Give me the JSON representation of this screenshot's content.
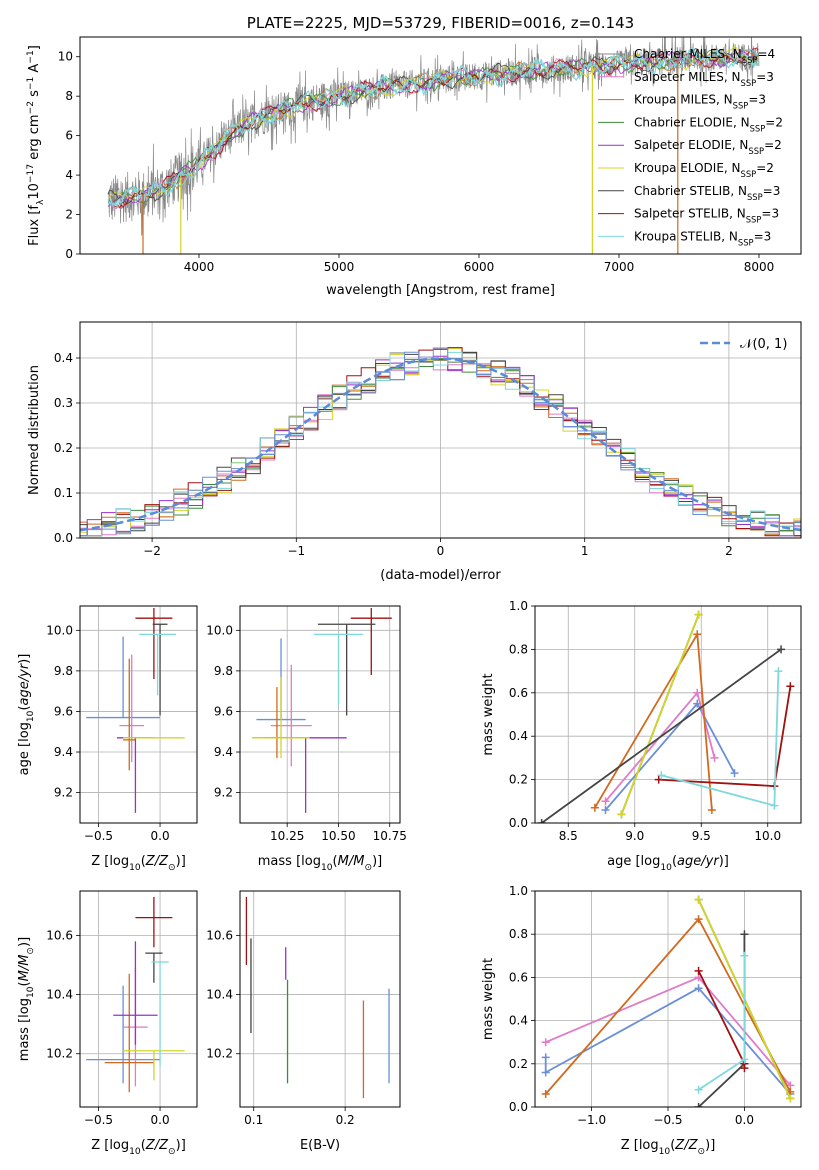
{
  "figure": {
    "title": "PLATE=2225, MJD=53729, FIBERID=0016, z=0.143"
  },
  "colors": {
    "Chabrier MILES": "#e17ac8",
    "Salpeter MILES": "#e17ac8",
    "Kroupa MILES": "#d2691e",
    "Chabrier ELODIE": "#3c8c3c",
    "Salpeter ELODIE": "#9932cc",
    "Kroupa ELODIE": "#d4d42a",
    "Chabrier STELIB": "#444444",
    "Salpeter STELIB": "#a01010",
    "Kroupa STELIB": "#7fd8dc",
    "blue": "#6a8fd8",
    "orange": "#e07b20",
    "gauss": "#5a8ad8",
    "data_grey": "#888888"
  },
  "chart_data": [
    {
      "id": "spectrum",
      "type": "line",
      "title": "PLATE=2225, MJD=53729, FIBERID=0016, z=0.143",
      "xlabel": "wavelength [Angstrom, rest frame]",
      "ylabel": "Flux [f_λ 10^-17 erg cm^-2 s^-1 A^-1]",
      "xlim": [
        3150,
        8300
      ],
      "ylim": [
        0,
        11
      ],
      "xticks": [
        4000,
        5000,
        6000,
        7000,
        8000
      ],
      "yticks": [
        0,
        2,
        4,
        6,
        8,
        10
      ],
      "grid": false,
      "legend_position": "top-right",
      "legend": [
        {
          "label": "Chabrier MILES, N",
          "sub": "SSP",
          "tail": "=4",
          "color": "#888888"
        },
        {
          "label": "Salpeter MILES, N",
          "sub": "SSP",
          "tail": "=3",
          "color": "#e17ac8"
        },
        {
          "label": "Kroupa MILES, N",
          "sub": "SSP",
          "tail": "=3",
          "color": "#d2691e"
        },
        {
          "label": "Chabrier ELODIE, N",
          "sub": "SSP",
          "tail": "=2",
          "color": "#3c8c3c"
        },
        {
          "label": "Salpeter ELODIE, N",
          "sub": "SSP",
          "tail": "=2",
          "color": "#9932cc"
        },
        {
          "label": "Kroupa ELODIE, N",
          "sub": "SSP",
          "tail": "=2",
          "color": "#d4d42a"
        },
        {
          "label": "Chabrier STELIB, N",
          "sub": "SSP",
          "tail": "=3",
          "color": "#444444"
        },
        {
          "label": "Salpeter STELIB, N",
          "sub": "SSP",
          "tail": "=3",
          "color": "#a01010"
        },
        {
          "label": "Kroupa STELIB, N",
          "sub": "SSP",
          "tail": "=3",
          "color": "#7fd8dc"
        }
      ],
      "continuum": {
        "x": [
          3350,
          3500,
          3600,
          3700,
          3800,
          3900,
          4000,
          4100,
          4200,
          4300,
          4400,
          4500,
          4600,
          4800,
          5000,
          5200,
          5400,
          5600,
          5800,
          6000,
          6200,
          6400,
          6600,
          6800,
          7000,
          7200,
          7400,
          7600,
          7800,
          8000
        ],
        "y": [
          2.7,
          2.9,
          3.0,
          3.2,
          3.6,
          4.1,
          4.6,
          5.2,
          5.9,
          6.4,
          6.8,
          7.1,
          7.3,
          7.7,
          8.0,
          8.3,
          8.5,
          8.7,
          8.9,
          9.0,
          9.2,
          9.3,
          9.4,
          9.5,
          9.6,
          9.7,
          9.8,
          9.9,
          10.0,
          10.0
        ]
      },
      "model_drops": [
        {
          "x": 3600,
          "color": "#d2691e"
        },
        {
          "x": 3870,
          "color": "#d4d42a"
        },
        {
          "x": 6810,
          "color": "#d4d42a"
        },
        {
          "x": 7420,
          "color": "#d2691e"
        }
      ]
    },
    {
      "id": "residuals",
      "type": "area",
      "xlabel": "(data-model)/error",
      "ylabel": "Normed distribution",
      "xlim": [
        -2.5,
        2.5
      ],
      "ylim": [
        0,
        0.48
      ],
      "xticks": [
        -2,
        -1,
        0,
        1,
        2
      ],
      "yticks": [
        0.0,
        0.1,
        0.2,
        0.3,
        0.4
      ],
      "grid": true,
      "legend_position": "top-right",
      "legend": [
        {
          "label": "𝒩(0, 1)",
          "color": "#5a8ad8",
          "style": "dashed"
        }
      ],
      "bin_width": 0.1
    },
    {
      "id": "age-vs-Z",
      "type": "scatter",
      "xlabel": "Z [log10(Z/Z⊙)]",
      "ylabel": "age  [log10(age/yr)]",
      "xlim": [
        -0.65,
        0.3
      ],
      "ylim": [
        9.05,
        10.12
      ],
      "xticks": [
        -0.5,
        0.0
      ],
      "yticks": [
        9.2,
        9.4,
        9.6,
        9.8,
        10.0
      ],
      "grid": true,
      "points": [
        {
          "x": -0.3,
          "y": 9.57,
          "xerr": 0.3,
          "yerr_lo": 0.0,
          "yerr_hi": 0.4,
          "color": "#6a8fd8"
        },
        {
          "x": -0.23,
          "y": 9.53,
          "xerr": 0.1,
          "yerr_lo": 0.18,
          "yerr_hi": 0.35,
          "color": "#e17ac8"
        },
        {
          "x": -0.25,
          "y": 9.46,
          "xerr": 0.05,
          "yerr_lo": 0.15,
          "yerr_hi": 0.4,
          "color": "#d2691e"
        },
        {
          "x": -0.2,
          "y": 9.47,
          "xerr": 0.15,
          "yerr_lo": 0.37,
          "yerr_hi": 0.0,
          "color": "#9932cc"
        },
        {
          "x": -0.05,
          "y": 9.47,
          "xerr": 0.25,
          "yerr_lo": 0.0,
          "yerr_hi": 0.0,
          "color": "#d4d42a"
        },
        {
          "x": -0.05,
          "y": 10.06,
          "xerr": 0.15,
          "yerr_lo": 0.3,
          "yerr_hi": 0.05,
          "color": "#a01010"
        },
        {
          "x": 0.0,
          "y": 10.03,
          "xerr": 0.06,
          "yerr_lo": 0.45,
          "yerr_hi": 0.0,
          "color": "#444444"
        },
        {
          "x": -0.02,
          "y": 9.98,
          "xerr": 0.15,
          "yerr_lo": 0.3,
          "yerr_hi": 0.0,
          "color": "#7fd8dc"
        }
      ]
    },
    {
      "id": "age-vs-mass",
      "type": "scatter",
      "xlabel": "mass [log10(M/M⊙)]",
      "ylabel": "",
      "xlim": [
        10.02,
        10.8
      ],
      "ylim": [
        9.05,
        10.12
      ],
      "xticks": [
        10.25,
        10.5,
        10.75
      ],
      "yticks": [
        9.2,
        9.4,
        9.6,
        9.8,
        10.0
      ],
      "grid": true,
      "points": [
        {
          "x": 10.22,
          "y": 9.56,
          "xerr": 0.12,
          "yerr_lo": 0.0,
          "yerr_hi": 0.4,
          "color": "#6a8fd8"
        },
        {
          "x": 10.27,
          "y": 9.53,
          "xerr": 0.1,
          "yerr_lo": 0.2,
          "yerr_hi": 0.3,
          "color": "#e17ac8"
        },
        {
          "x": 10.2,
          "y": 9.47,
          "xerr": 0.12,
          "yerr_lo": 0.1,
          "yerr_hi": 0.25,
          "color": "#d2691e"
        },
        {
          "x": 10.34,
          "y": 9.47,
          "xerr": 0.2,
          "yerr_lo": 0.37,
          "yerr_hi": 0.0,
          "color": "#9932cc"
        },
        {
          "x": 10.22,
          "y": 9.47,
          "xerr": 0.14,
          "yerr_lo": 0.1,
          "yerr_hi": 0.3,
          "color": "#d4d42a"
        },
        {
          "x": 10.66,
          "y": 10.06,
          "xerr": 0.1,
          "yerr_lo": 0.28,
          "yerr_hi": 0.05,
          "color": "#a01010"
        },
        {
          "x": 10.54,
          "y": 10.03,
          "xerr": 0.14,
          "yerr_lo": 0.45,
          "yerr_hi": 0.0,
          "color": "#444444"
        },
        {
          "x": 10.5,
          "y": 9.98,
          "xerr": 0.12,
          "yerr_lo": 0.35,
          "yerr_hi": 0.0,
          "color": "#7fd8dc"
        }
      ]
    },
    {
      "id": "weight-vs-age",
      "type": "line",
      "xlabel": "age  [log10(age/yr)]",
      "ylabel": "mass weight",
      "xlim": [
        8.25,
        10.25
      ],
      "ylim": [
        0,
        1.0
      ],
      "xticks": [
        8.5,
        9.0,
        9.5,
        10.0
      ],
      "yticks": [
        0.0,
        0.2,
        0.4,
        0.6,
        0.8,
        1.0
      ],
      "grid": true,
      "series": [
        {
          "color": "#6a8fd8",
          "x": [
            8.78,
            9.47,
            9.75
          ],
          "y": [
            0.06,
            0.55,
            0.23
          ]
        },
        {
          "color": "#e17ac8",
          "x": [
            8.78,
            9.47,
            9.6
          ],
          "y": [
            0.1,
            0.6,
            0.3
          ]
        },
        {
          "color": "#d2691e",
          "x": [
            8.7,
            9.47,
            9.58
          ],
          "y": [
            0.07,
            0.87,
            0.06
          ]
        },
        {
          "color": "#3c8c3c",
          "x": [
            8.9,
            9.48
          ],
          "y": [
            0.04,
            0.96
          ]
        },
        {
          "color": "#d4d42a",
          "x": [
            8.9,
            9.48
          ],
          "y": [
            0.04,
            0.96
          ]
        },
        {
          "color": "#444444",
          "x": [
            8.3,
            10.1
          ],
          "y": [
            0.0,
            0.8
          ]
        },
        {
          "color": "#a01010",
          "x": [
            9.18,
            10.05,
            10.17
          ],
          "y": [
            0.2,
            0.17,
            0.63
          ]
        },
        {
          "color": "#7fd8dc",
          "x": [
            9.2,
            10.05,
            10.08
          ],
          "y": [
            0.22,
            0.08,
            0.7
          ]
        }
      ]
    },
    {
      "id": "mass-vs-Z",
      "type": "scatter",
      "xlabel": "Z [log10(Z/Z⊙)]",
      "ylabel": "mass [log10(M/M⊙)]",
      "xlim": [
        -0.65,
        0.3
      ],
      "ylim": [
        10.02,
        10.75
      ],
      "xticks": [
        -0.5,
        0.0
      ],
      "yticks": [
        10.2,
        10.4,
        10.6
      ],
      "grid": true,
      "points": [
        {
          "x": -0.3,
          "y": 10.18,
          "xerr": 0.3,
          "yerr_lo": 0.08,
          "yerr_hi": 0.25,
          "color": "#6a8fd8"
        },
        {
          "x": -0.2,
          "y": 10.29,
          "xerr": 0.1,
          "yerr_lo": 0.2,
          "yerr_hi": 0.2,
          "color": "#e17ac8"
        },
        {
          "x": -0.25,
          "y": 10.17,
          "xerr": 0.2,
          "yerr_lo": 0.1,
          "yerr_hi": 0.3,
          "color": "#d2691e"
        },
        {
          "x": -0.2,
          "y": 10.33,
          "xerr": 0.18,
          "yerr_lo": 0.1,
          "yerr_hi": 0.25,
          "color": "#9932cc"
        },
        {
          "x": -0.05,
          "y": 10.21,
          "xerr": 0.25,
          "yerr_lo": 0.1,
          "yerr_hi": 0.0,
          "color": "#d4d42a"
        },
        {
          "x": -0.05,
          "y": 10.66,
          "xerr": 0.15,
          "yerr_lo": 0.1,
          "yerr_hi": 0.07,
          "color": "#a01010"
        },
        {
          "x": -0.05,
          "y": 10.54,
          "xerr": 0.07,
          "yerr_lo": 0.1,
          "yerr_hi": 0.0,
          "color": "#444444"
        },
        {
          "x": 0.0,
          "y": 10.51,
          "xerr": 0.07,
          "yerr_lo": 0.35,
          "yerr_hi": 0.0,
          "color": "#7fd8dc"
        }
      ]
    },
    {
      "id": "mass-vs-ebv",
      "type": "scatter",
      "xlabel": "E(B-V)",
      "ylabel": "",
      "xlim": [
        0.085,
        0.26
      ],
      "ylim": [
        10.02,
        10.75
      ],
      "xticks": [
        0.1,
        0.2
      ],
      "yticks": [
        10.2,
        10.4,
        10.6
      ],
      "grid": true,
      "points": [
        {
          "x": 0.092,
          "y": 10.6,
          "yerr_lo": 0.1,
          "yerr_hi": 0.13,
          "color": "#a01010"
        },
        {
          "x": 0.097,
          "y": 10.44,
          "yerr_lo": 0.17,
          "yerr_hi": 0.15,
          "color": "#444444"
        },
        {
          "x": 0.135,
          "y": 10.5,
          "yerr_lo": 0.05,
          "yerr_hi": 0.06,
          "color": "#9932cc"
        },
        {
          "x": 0.137,
          "y": 10.3,
          "yerr_lo": 0.2,
          "yerr_hi": 0.15,
          "color": "#3c8c3c"
        },
        {
          "x": 0.22,
          "y": 10.22,
          "yerr_lo": 0.17,
          "yerr_hi": 0.16,
          "color": "#d2691e"
        },
        {
          "x": 0.248,
          "y": 10.26,
          "yerr_lo": 0.16,
          "yerr_hi": 0.16,
          "color": "#6a8fd8"
        }
      ]
    },
    {
      "id": "weight-vs-Z",
      "type": "line",
      "xlabel": "Z [log10(Z/Z⊙)]",
      "ylabel": "mass weight",
      "xlim": [
        -1.37,
        0.37
      ],
      "ylim": [
        0,
        1.0
      ],
      "xticks": [
        -1.0,
        -0.5,
        0.0
      ],
      "yticks": [
        0.0,
        0.2,
        0.4,
        0.6,
        0.8,
        1.0
      ],
      "grid": true,
      "series": [
        {
          "color": "#6a8fd8",
          "x": [
            -1.3,
            -1.3,
            -0.3,
            0.3
          ],
          "y": [
            0.23,
            0.16,
            0.55,
            0.06
          ]
        },
        {
          "color": "#e17ac8",
          "x": [
            -1.3,
            -0.3,
            0.3
          ],
          "y": [
            0.3,
            0.6,
            0.1
          ]
        },
        {
          "color": "#d2691e",
          "x": [
            -1.3,
            -0.3,
            0.3
          ],
          "y": [
            0.06,
            0.87,
            0.07
          ]
        },
        {
          "color": "#3c8c3c",
          "x": [
            -0.3,
            0.3
          ],
          "y": [
            0.96,
            0.04
          ]
        },
        {
          "color": "#d4d42a",
          "x": [
            -0.3,
            0.3
          ],
          "y": [
            0.96,
            0.04
          ]
        },
        {
          "color": "#444444",
          "x": [
            -0.3,
            0.0,
            0.0
          ],
          "y": [
            0.0,
            0.2,
            0.8
          ]
        },
        {
          "color": "#a01010",
          "x": [
            -0.3,
            0.0,
            0.0
          ],
          "y": [
            0.63,
            0.2,
            0.18
          ]
        },
        {
          "color": "#7fd8dc",
          "x": [
            -0.3,
            0.0,
            0.0
          ],
          "y": [
            0.08,
            0.22,
            0.7
          ]
        }
      ]
    }
  ]
}
